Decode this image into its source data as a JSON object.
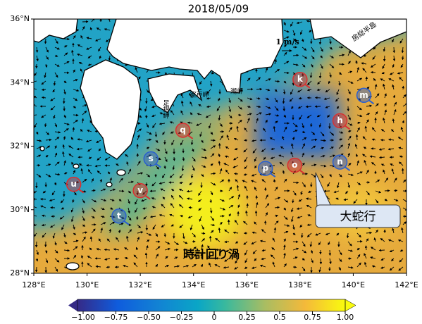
{
  "chart_data": {
    "type": "map",
    "title": "2018/05/09",
    "xlim": [
      128,
      142
    ],
    "ylim": [
      28,
      36
    ],
    "xticks": [
      {
        "value": 128,
        "label": "128°E"
      },
      {
        "value": 130,
        "label": "130°E"
      },
      {
        "value": 132,
        "label": "132°E"
      },
      {
        "value": 134,
        "label": "134°E"
      },
      {
        "value": 136,
        "label": "136°E"
      },
      {
        "value": 138,
        "label": "138°E"
      },
      {
        "value": 140,
        "label": "140°E"
      },
      {
        "value": 142,
        "label": "142°E"
      }
    ],
    "yticks": [
      {
        "value": 28,
        "label": "28°N"
      },
      {
        "value": 30,
        "label": "30°N"
      },
      {
        "value": 32,
        "label": "32°N"
      },
      {
        "value": 34,
        "label": "34°N"
      },
      {
        "value": 36,
        "label": "36°N"
      }
    ],
    "colorbar": {
      "lim": [
        -1,
        1
      ],
      "ticks": [
        {
          "value": -1,
          "label": "−1.00"
        },
        {
          "value": -0.75,
          "label": "−0.75"
        },
        {
          "value": -0.5,
          "label": "−0.50"
        },
        {
          "value": -0.25,
          "label": "−0.25"
        },
        0,
        0.25,
        0.5,
        0.75,
        {
          "value": 1,
          "label": "1.00"
        }
      ]
    },
    "annotations": {
      "scale": "1 m/s",
      "meander": "大蛇行",
      "eddy": "時計回り渦",
      "ashizuri": "足摺岬",
      "muroto": "室戸岬",
      "shio": "潮岬",
      "boso": "房総半島"
    },
    "eddies": [
      {
        "label": "u",
        "lon": 129.5,
        "lat": 30.8,
        "color": "#d93030"
      },
      {
        "label": "t",
        "lon": 131.2,
        "lat": 29.8,
        "color": "#2a5fd0"
      },
      {
        "label": "v",
        "lon": 132.0,
        "lat": 30.6,
        "color": "#d93030"
      },
      {
        "label": "s",
        "lon": 132.4,
        "lat": 31.6,
        "color": "#2a5fd0"
      },
      {
        "label": "q",
        "lon": 133.6,
        "lat": 32.5,
        "color": "#d93030"
      },
      {
        "label": "p",
        "lon": 136.7,
        "lat": 31.3,
        "color": "#2a5fd0"
      },
      {
        "label": "o",
        "lon": 137.8,
        "lat": 31.4,
        "color": "#d93030"
      },
      {
        "label": "k",
        "lon": 138.0,
        "lat": 34.1,
        "color": "#d93030"
      },
      {
        "label": "n",
        "lon": 139.5,
        "lat": 31.5,
        "color": "#2a5fd0"
      },
      {
        "label": "h",
        "lon": 139.5,
        "lat": 32.8,
        "color": "#d93030"
      },
      {
        "label": "m",
        "lon": 140.4,
        "lat": 33.6,
        "color": "#2a5fd0"
      }
    ]
  }
}
